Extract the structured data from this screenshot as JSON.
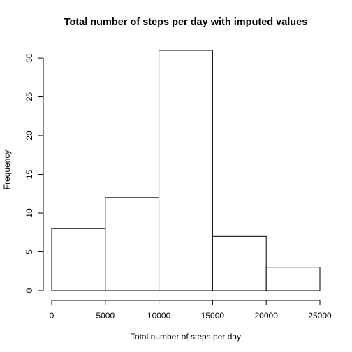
{
  "chart_data": {
    "type": "bar",
    "title": "Total number of steps per day with imputed values",
    "xlabel": "Total number of steps per day",
    "ylabel": "Frequency",
    "bins": [
      {
        "from": 0,
        "to": 5000,
        "count": 8
      },
      {
        "from": 5000,
        "to": 10000,
        "count": 12
      },
      {
        "from": 10000,
        "to": 15000,
        "count": 31
      },
      {
        "from": 15000,
        "to": 20000,
        "count": 7
      },
      {
        "from": 20000,
        "to": 25000,
        "count": 3
      }
    ],
    "xlim": [
      0,
      25000
    ],
    "ylim": [
      0,
      31
    ],
    "x_ticks": [
      0,
      5000,
      10000,
      15000,
      20000,
      25000
    ],
    "y_ticks": [
      0,
      5,
      10,
      15,
      20,
      25,
      30
    ],
    "grid": false,
    "legend": "none"
  }
}
